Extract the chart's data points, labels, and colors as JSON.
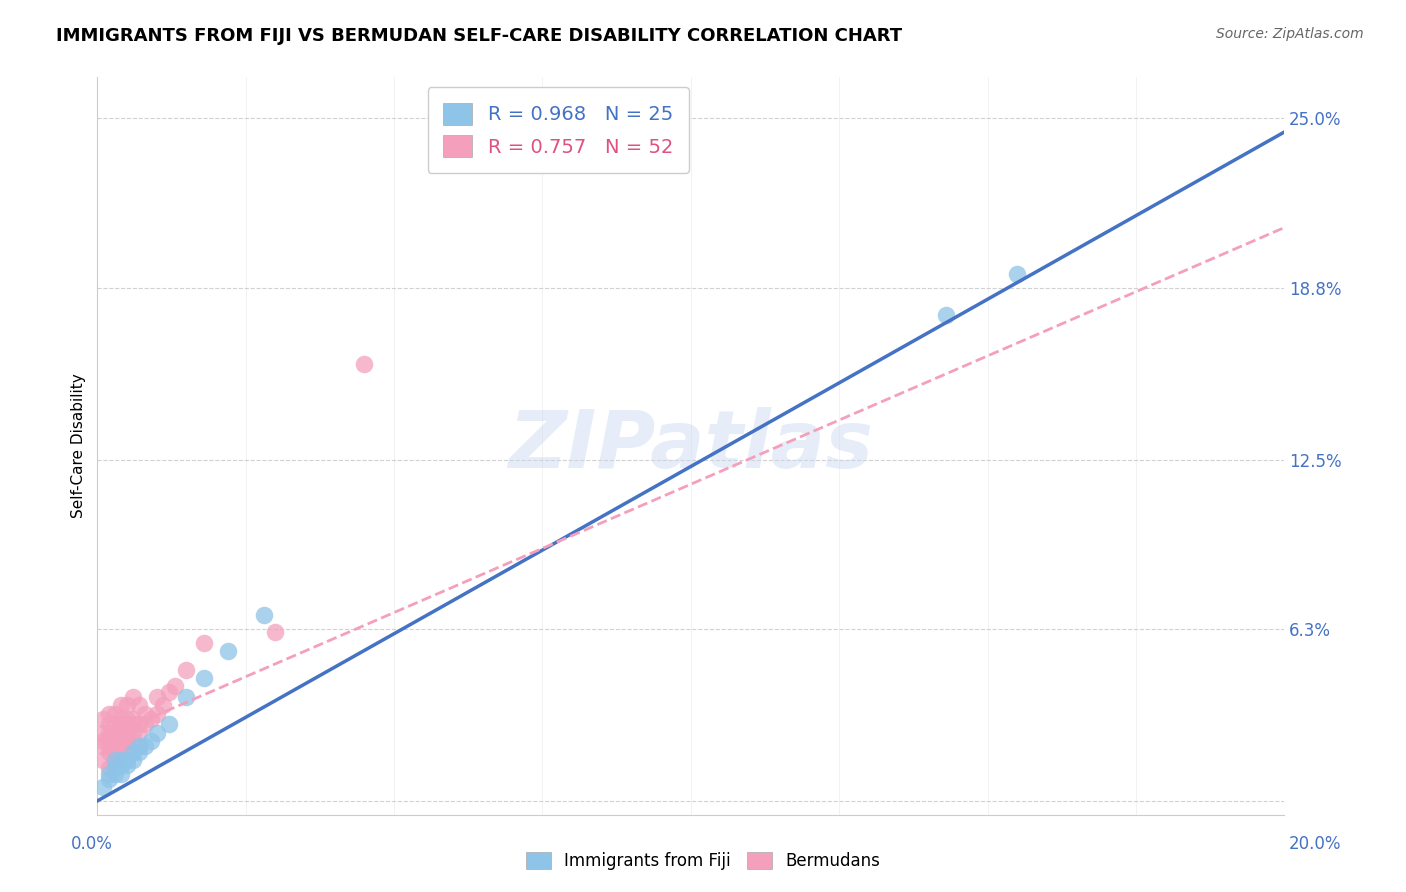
{
  "title": "IMMIGRANTS FROM FIJI VS BERMUDAN SELF-CARE DISABILITY CORRELATION CHART",
  "source": "Source: ZipAtlas.com",
  "ylabel": "Self-Care Disability",
  "yticks": [
    0.0,
    0.063,
    0.125,
    0.188,
    0.25
  ],
  "ytick_labels": [
    "",
    "6.3%",
    "12.5%",
    "18.8%",
    "25.0%"
  ],
  "xlim": [
    0.0,
    0.2
  ],
  "ylim": [
    -0.005,
    0.265
  ],
  "fiji_R": 0.968,
  "fiji_N": 25,
  "bermuda_R": 0.757,
  "bermuda_N": 52,
  "fiji_color": "#8ec4e8",
  "bermuda_color": "#f4a0bc",
  "fiji_line_color": "#4472c4",
  "bermuda_line_color": "#f4a0bc",
  "watermark": "ZIPatlas",
  "fiji_line": [
    0.0,
    0.0,
    0.2,
    0.245
  ],
  "bermuda_line": [
    0.0,
    0.022,
    0.2,
    0.21
  ],
  "fiji_x": [
    0.001,
    0.002,
    0.002,
    0.003,
    0.003,
    0.003,
    0.004,
    0.004,
    0.004,
    0.005,
    0.005,
    0.006,
    0.006,
    0.007,
    0.007,
    0.008,
    0.009,
    0.01,
    0.012,
    0.015,
    0.018,
    0.022,
    0.028,
    0.143,
    0.155
  ],
  "fiji_y": [
    0.005,
    0.008,
    0.01,
    0.01,
    0.012,
    0.015,
    0.01,
    0.013,
    0.015,
    0.013,
    0.015,
    0.015,
    0.018,
    0.018,
    0.02,
    0.02,
    0.022,
    0.025,
    0.028,
    0.038,
    0.045,
    0.055,
    0.068,
    0.178,
    0.193
  ],
  "bermuda_x": [
    0.001,
    0.001,
    0.001,
    0.001,
    0.001,
    0.002,
    0.002,
    0.002,
    0.002,
    0.002,
    0.002,
    0.002,
    0.003,
    0.003,
    0.003,
    0.003,
    0.003,
    0.003,
    0.003,
    0.004,
    0.004,
    0.004,
    0.004,
    0.004,
    0.004,
    0.004,
    0.005,
    0.005,
    0.005,
    0.005,
    0.005,
    0.005,
    0.006,
    0.006,
    0.006,
    0.006,
    0.006,
    0.007,
    0.007,
    0.007,
    0.008,
    0.008,
    0.009,
    0.01,
    0.01,
    0.011,
    0.012,
    0.013,
    0.015,
    0.018,
    0.03,
    0.045
  ],
  "bermuda_y": [
    0.015,
    0.02,
    0.022,
    0.025,
    0.03,
    0.012,
    0.018,
    0.02,
    0.023,
    0.025,
    0.028,
    0.032,
    0.015,
    0.018,
    0.02,
    0.022,
    0.025,
    0.028,
    0.032,
    0.018,
    0.02,
    0.022,
    0.025,
    0.028,
    0.03,
    0.035,
    0.02,
    0.022,
    0.025,
    0.028,
    0.03,
    0.035,
    0.022,
    0.025,
    0.028,
    0.03,
    0.038,
    0.025,
    0.028,
    0.035,
    0.028,
    0.032,
    0.03,
    0.032,
    0.038,
    0.035,
    0.04,
    0.042,
    0.048,
    0.058,
    0.062,
    0.16
  ]
}
